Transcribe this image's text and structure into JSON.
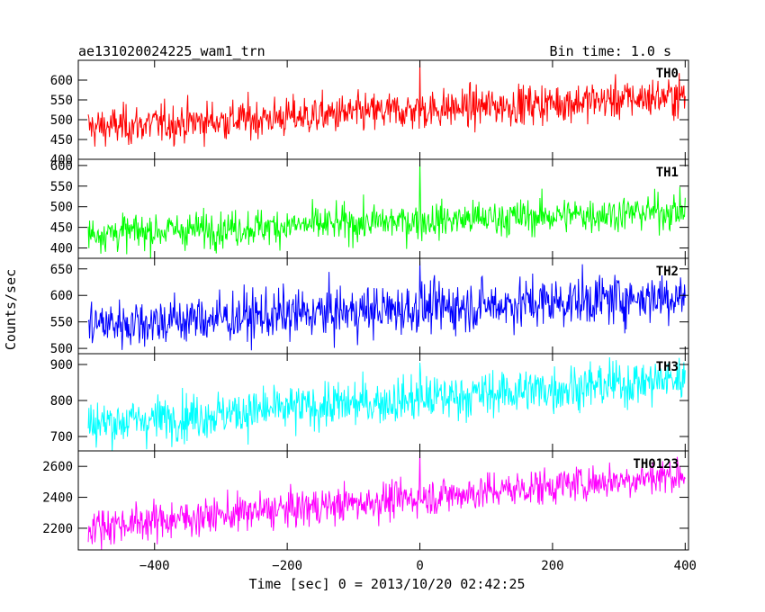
{
  "header": {
    "title": "ae131020024225_wam1_trn",
    "bin_time": "Bin time: 1.0 s"
  },
  "chart_data": {
    "type": "line",
    "x_range": [
      -515,
      405
    ],
    "xlabel": "Time [sec] 0 = 2013/10/20 02:42:25",
    "ylabel": "Counts/sec",
    "x_ticks": [
      -400,
      -200,
      0,
      200,
      400
    ],
    "x_tick_labels": [
      "−400",
      "−200",
      "0",
      "200",
      "400"
    ],
    "x_start": -500,
    "x_end": 400,
    "panels": [
      {
        "name": "TH0",
        "color": "#ff0000",
        "ylim": [
          400,
          650
        ],
        "yticks": [
          400,
          450,
          500,
          550,
          600
        ],
        "trend_start": 480,
        "trend_end": 560,
        "noise": 25,
        "spike_x": 0,
        "spike_value": 650
      },
      {
        "name": "TH1",
        "color": "#00ff00",
        "ylim": [
          375,
          615
        ],
        "yticks": [
          400,
          450,
          500,
          550,
          600
        ],
        "trend_start": 435,
        "trend_end": 490,
        "noise": 22,
        "spike_x": 0,
        "spike_value": 612
      },
      {
        "name": "TH2",
        "color": "#0000ff",
        "ylim": [
          490,
          670
        ],
        "yticks": [
          500,
          550,
          600,
          650
        ],
        "trend_start": 545,
        "trend_end": 600,
        "noise": 24,
        "spike_x": 0,
        "spike_value": 665
      },
      {
        "name": "TH3",
        "color": "#00ffff",
        "ylim": [
          660,
          930
        ],
        "yticks": [
          700,
          800,
          900
        ],
        "trend_start": 735,
        "trend_end": 860,
        "noise": 32,
        "spike_x": 0,
        "spike_value": 905
      },
      {
        "name": "TH0123",
        "color": "#ff00ff",
        "ylim": [
          2060,
          2700
        ],
        "yticks": [
          2200,
          2400,
          2600
        ],
        "trend_start": 2210,
        "trend_end": 2550,
        "noise": 60,
        "spike_x": 0,
        "spike_value": 2690
      }
    ]
  }
}
